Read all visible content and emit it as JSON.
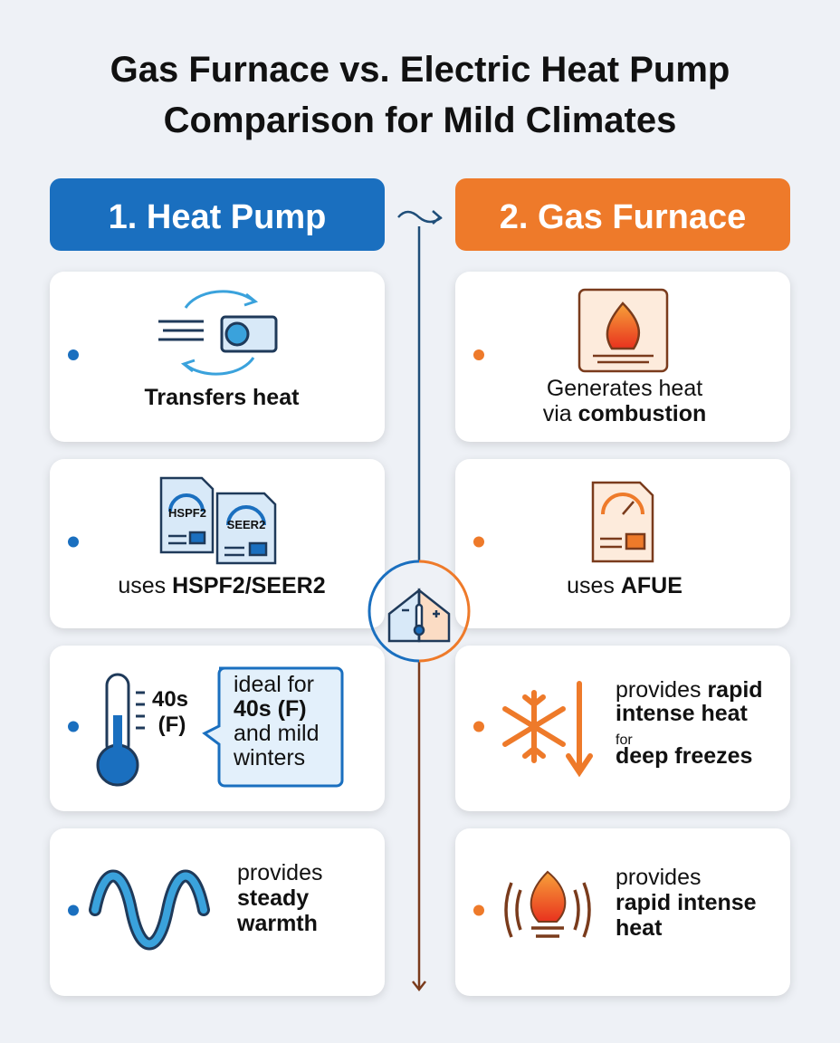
{
  "title": [
    "Gas Furnace vs. Electric Heat Pump",
    "Comparison for Mild Climates"
  ],
  "columns": [
    {
      "header": "1. Heat Pump",
      "cards": [
        {
          "lines": [
            [
              {
                "text": "Transfers heat",
                "bold": true
              }
            ]
          ]
        },
        {
          "icon_labels": [
            "HSPF2",
            "SEER2"
          ],
          "lines": [
            [
              {
                "text": "uses "
              },
              {
                "text": "HSPF2/SEER2",
                "bold": true
              }
            ]
          ]
        },
        {
          "icon_labels": [
            "40s",
            "(F)"
          ],
          "lines": [
            [
              {
                "text": "ideal for"
              }
            ],
            [
              {
                "text": "40s (F)",
                "bold": true
              }
            ],
            [
              {
                "text": "and mild"
              }
            ],
            [
              {
                "text": "winters"
              }
            ]
          ]
        },
        {
          "lines": [
            [
              {
                "text": "provides"
              }
            ],
            [
              {
                "text": "steady",
                "bold": true
              }
            ],
            [
              {
                "text": "warmth",
                "bold": true
              }
            ]
          ]
        }
      ]
    },
    {
      "header": "2. Gas Furnace",
      "cards": [
        {
          "lines": [
            [
              {
                "text": "Generates heat"
              }
            ],
            [
              {
                "text": "via "
              },
              {
                "text": "combustion",
                "bold": true
              }
            ]
          ]
        },
        {
          "lines": [
            [
              {
                "text": "uses "
              },
              {
                "text": "AFUE",
                "bold": true
              }
            ]
          ]
        },
        {
          "lines": [
            [
              {
                "text": "provides "
              },
              {
                "text": "rapid",
                "bold": true
              }
            ],
            [
              {
                "text": "intense heat",
                "bold": true
              }
            ],
            [
              {
                "text": "for",
                "small": true
              }
            ],
            [
              {
                "text": "deep freezes",
                "bold": true
              }
            ]
          ]
        },
        {
          "lines": [
            [
              {
                "text": "provides"
              }
            ],
            [
              {
                "text": "rapid intense",
                "bold": true
              }
            ],
            [
              {
                "text": "heat",
                "bold": true
              }
            ]
          ]
        }
      ]
    }
  ]
}
